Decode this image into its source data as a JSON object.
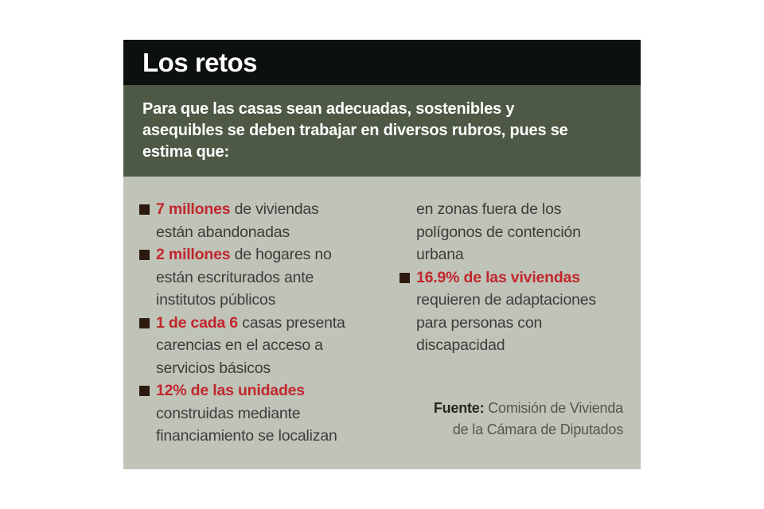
{
  "header": {
    "title": "Los retos"
  },
  "intro": {
    "text": "Para que las casas sean adecuadas, sostenibles y\nasequibles se deben trabajar en diversos rubros, pues se\nestima que:"
  },
  "left_items": [
    {
      "highlight": "7 millones",
      "rest": " de viviendas\nestán abandonadas"
    },
    {
      "highlight": "2 millones",
      "rest": " de hogares no\nestán escriturados ante\ninstitutos públicos"
    },
    {
      "highlight": "1 de cada 6",
      "rest": " casas presenta\ncarencias en el acceso a\nservicios básicos"
    },
    {
      "highlight": "12% de las unidades",
      "rest": "\nconstruidas mediante\nfinanciamiento se localizan"
    }
  ],
  "right_column": {
    "continuation": "en zonas fuera de los\npolígonos de contención\nurbana",
    "item": {
      "highlight": "16.9% de las viviendas",
      "rest": "\nrequieren de adaptaciones\npara personas con\ndiscapacidad"
    }
  },
  "source": {
    "label": "Fuente:",
    "text": " Comisión de Vivienda\nde la Cámara de Diputados"
  },
  "colors": {
    "header_bg": "#0c110e",
    "intro_bg": "#4d5945",
    "body_bg": "#bfc3b8",
    "accent_red": "#c1272d",
    "bullet_square": "#2d1a0f",
    "body_text": "#3d3d3b",
    "header_text": "#ffffff"
  }
}
